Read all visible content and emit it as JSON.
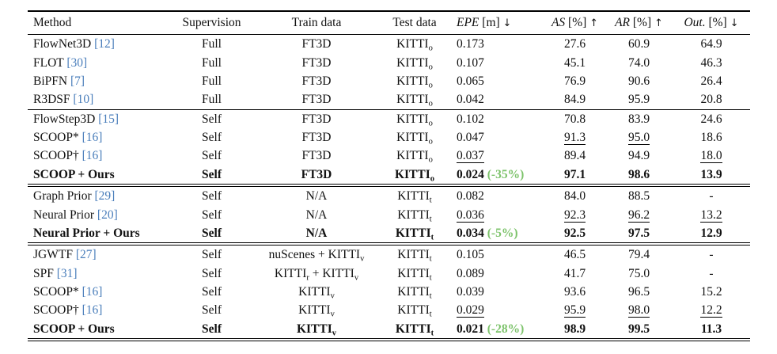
{
  "colors": {
    "citation_blue": "#4a7ebb",
    "delta_green": "#7dc36b",
    "rule_black": "#000000"
  },
  "table": {
    "headers": [
      {
        "label": "Method"
      },
      {
        "label": "Supervision"
      },
      {
        "label": "Train data"
      },
      {
        "label": "Test data"
      },
      {
        "it": "EPE",
        "label": " [m] ",
        "arrow": "↓"
      },
      {
        "it": "AS",
        "label": " [%] ",
        "arrow": "↑"
      },
      {
        "it": "AR",
        "label": " [%] ",
        "arrow": "↑"
      },
      {
        "it": "Out.",
        "label": " [%] ",
        "arrow": "↓"
      }
    ],
    "groups": [
      {
        "rule": "single",
        "rows": [
          {
            "method": {
              "name": "FlowNet3D",
              "cite": "[12]"
            },
            "sup": "Full",
            "train": [
              {
                "t": "FT3D"
              }
            ],
            "test": [
              {
                "t": "KITTI"
              },
              {
                "s": "o"
              }
            ],
            "epe": {
              "v": "0.173"
            },
            "as": {
              "v": "27.6"
            },
            "ar": {
              "v": "60.9"
            },
            "out": {
              "v": "64.9"
            }
          },
          {
            "method": {
              "name": "FLOT",
              "cite": "[30]"
            },
            "sup": "Full",
            "train": [
              {
                "t": "FT3D"
              }
            ],
            "test": [
              {
                "t": "KITTI"
              },
              {
                "s": "o"
              }
            ],
            "epe": {
              "v": "0.107"
            },
            "as": {
              "v": "45.1"
            },
            "ar": {
              "v": "74.0"
            },
            "out": {
              "v": "46.3"
            }
          },
          {
            "method": {
              "name": "BiPFN",
              "cite": "[7]"
            },
            "sup": "Full",
            "train": [
              {
                "t": "FT3D"
              }
            ],
            "test": [
              {
                "t": "KITTI"
              },
              {
                "s": "o"
              }
            ],
            "epe": {
              "v": "0.065"
            },
            "as": {
              "v": "76.9"
            },
            "ar": {
              "v": "90.6"
            },
            "out": {
              "v": "26.4"
            }
          },
          {
            "method": {
              "name": "R3DSF",
              "cite": "[10]"
            },
            "sup": "Full",
            "train": [
              {
                "t": "FT3D"
              }
            ],
            "test": [
              {
                "t": "KITTI"
              },
              {
                "s": "o"
              }
            ],
            "epe": {
              "v": "0.042"
            },
            "as": {
              "v": "84.9"
            },
            "ar": {
              "v": "95.9"
            },
            "out": {
              "v": "20.8"
            }
          }
        ]
      },
      {
        "rule": "double",
        "rows": [
          {
            "method": {
              "name": "FlowStep3D",
              "cite": "[15]"
            },
            "sup": "Self",
            "train": [
              {
                "t": "FT3D"
              }
            ],
            "test": [
              {
                "t": "KITTI"
              },
              {
                "s": "o"
              }
            ],
            "epe": {
              "v": "0.102"
            },
            "as": {
              "v": "70.8"
            },
            "ar": {
              "v": "83.9"
            },
            "out": {
              "v": "24.6"
            }
          },
          {
            "method": {
              "name": "SCOOP*",
              "cite": "[16]"
            },
            "sup": "Self",
            "train": [
              {
                "t": "FT3D"
              }
            ],
            "test": [
              {
                "t": "KITTI"
              },
              {
                "s": "o"
              }
            ],
            "epe": {
              "v": "0.047"
            },
            "as": {
              "v": "91.3",
              "u": true
            },
            "ar": {
              "v": "95.0",
              "u": true
            },
            "out": {
              "v": "18.6"
            }
          },
          {
            "method": {
              "name": "SCOOP†",
              "cite": "[16]"
            },
            "sup": "Self",
            "train": [
              {
                "t": "FT3D"
              }
            ],
            "test": [
              {
                "t": "KITTI"
              },
              {
                "s": "o"
              }
            ],
            "epe": {
              "v": "0.037",
              "u": true
            },
            "as": {
              "v": "89.4"
            },
            "ar": {
              "v": "94.9"
            },
            "out": {
              "v": "18.0",
              "u": true
            }
          },
          {
            "bold": true,
            "method": {
              "name": "SCOOP + Ours"
            },
            "sup": "Self",
            "train": [
              {
                "t": "FT3D"
              }
            ],
            "test": [
              {
                "t": "KITTI"
              },
              {
                "s": "o"
              }
            ],
            "epe": {
              "v": "0.024",
              "d": "(-35%)"
            },
            "as": {
              "v": "97.1"
            },
            "ar": {
              "v": "98.6"
            },
            "out": {
              "v": "13.9"
            }
          }
        ]
      },
      {
        "rule": "double",
        "rows": [
          {
            "method": {
              "name": "Graph Prior",
              "cite": "[29]"
            },
            "sup": "Self",
            "train": [
              {
                "t": "N/A"
              }
            ],
            "test": [
              {
                "t": "KITTI"
              },
              {
                "s": "t"
              }
            ],
            "epe": {
              "v": "0.082"
            },
            "as": {
              "v": "84.0"
            },
            "ar": {
              "v": "88.5"
            },
            "out": {
              "v": "-"
            }
          },
          {
            "method": {
              "name": "Neural Prior",
              "cite": "[20]"
            },
            "sup": "Self",
            "train": [
              {
                "t": "N/A"
              }
            ],
            "test": [
              {
                "t": "KITTI"
              },
              {
                "s": "t"
              }
            ],
            "epe": {
              "v": "0.036",
              "u": true
            },
            "as": {
              "v": "92.3",
              "u": true
            },
            "ar": {
              "v": "96.2",
              "u": true
            },
            "out": {
              "v": "13.2",
              "u": true
            }
          },
          {
            "bold": true,
            "method": {
              "name": "Neural Prior + Ours"
            },
            "sup": "Self",
            "train": [
              {
                "t": "N/A"
              }
            ],
            "test": [
              {
                "t": "KITTI"
              },
              {
                "s": "t"
              }
            ],
            "epe": {
              "v": "0.034",
              "d": "(-5%)"
            },
            "as": {
              "v": "92.5"
            },
            "ar": {
              "v": "97.5"
            },
            "out": {
              "v": "12.9"
            }
          }
        ]
      },
      {
        "rule": "double",
        "rows": [
          {
            "method": {
              "name": "JGWTF",
              "cite": "[27]"
            },
            "sup": "Self",
            "train": [
              {
                "t": "nuScenes + KITTI"
              },
              {
                "s": "v"
              }
            ],
            "test": [
              {
                "t": "KITTI"
              },
              {
                "s": "t"
              }
            ],
            "epe": {
              "v": "0.105"
            },
            "as": {
              "v": "46.5"
            },
            "ar": {
              "v": "79.4"
            },
            "out": {
              "v": "-"
            }
          },
          {
            "method": {
              "name": "SPF",
              "cite": "[31]"
            },
            "sup": "Self",
            "train": [
              {
                "t": "KITTI"
              },
              {
                "s": "r"
              },
              {
                "t": " + KITTI"
              },
              {
                "s": "v"
              }
            ],
            "test": [
              {
                "t": "KITTI"
              },
              {
                "s": "t"
              }
            ],
            "epe": {
              "v": "0.089"
            },
            "as": {
              "v": "41.7"
            },
            "ar": {
              "v": "75.0"
            },
            "out": {
              "v": "-"
            }
          },
          {
            "method": {
              "name": "SCOOP*",
              "cite": "[16]"
            },
            "sup": "Self",
            "train": [
              {
                "t": "KITTI"
              },
              {
                "s": "v"
              }
            ],
            "test": [
              {
                "t": "KITTI"
              },
              {
                "s": "t"
              }
            ],
            "epe": {
              "v": "0.039"
            },
            "as": {
              "v": "93.6"
            },
            "ar": {
              "v": "96.5"
            },
            "out": {
              "v": "15.2"
            }
          },
          {
            "method": {
              "name": "SCOOP†",
              "cite": "[16]"
            },
            "sup": "Self",
            "train": [
              {
                "t": "KITTI"
              },
              {
                "s": "v"
              }
            ],
            "test": [
              {
                "t": "KITTI"
              },
              {
                "s": "t"
              }
            ],
            "epe": {
              "v": "0.029",
              "u": true
            },
            "as": {
              "v": "95.9",
              "u": true
            },
            "ar": {
              "v": "98.0",
              "u": true
            },
            "out": {
              "v": "12.2",
              "u": true
            }
          },
          {
            "bold": true,
            "method": {
              "name": "SCOOP + Ours"
            },
            "sup": "Self",
            "train": [
              {
                "t": "KITTI"
              },
              {
                "s": "v"
              }
            ],
            "test": [
              {
                "t": "KITTI"
              },
              {
                "s": "t"
              }
            ],
            "epe": {
              "v": "0.021",
              "d": "(-28%)"
            },
            "as": {
              "v": "98.9"
            },
            "ar": {
              "v": "99.5"
            },
            "out": {
              "v": "11.3"
            }
          }
        ]
      }
    ]
  }
}
